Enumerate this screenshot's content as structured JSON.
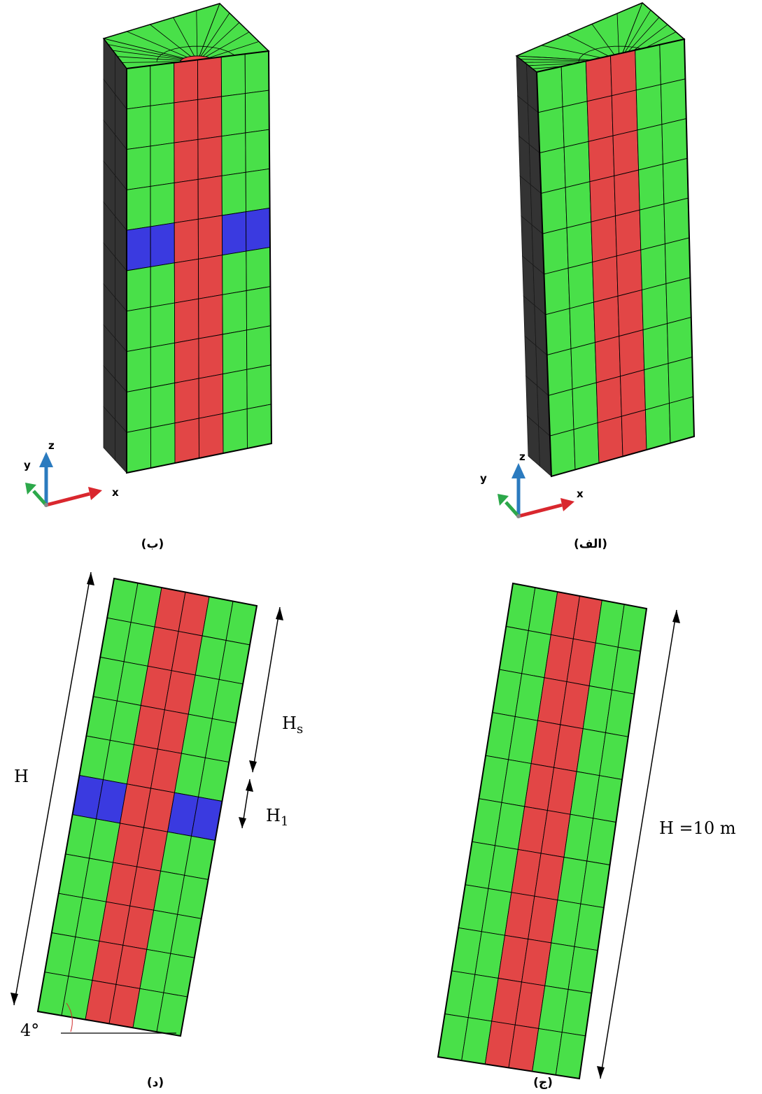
{
  "colors": {
    "soil": "#49e049",
    "column": "#e24646",
    "column_top": "#f04848",
    "band": "#3a3ae0",
    "side": "#333333",
    "line": "#000000",
    "axis_x": "#d9272e",
    "axis_y": "#2ca84a",
    "axis_z": "#2b7bbf"
  },
  "panels": {
    "a": {
      "caption": "(الف)",
      "axes": {
        "x": "x",
        "y": "y",
        "z": "z"
      }
    },
    "b": {
      "caption": "(ب)",
      "axes": {
        "x": "x",
        "y": "y",
        "z": "z"
      }
    },
    "c": {
      "caption": "(ج)",
      "height_label": "H =10 m"
    },
    "d": {
      "caption": "(د)",
      "H_label": "H",
      "Hs_main": "H",
      "Hs_sub": "s",
      "H1_main": "H",
      "H1_sub": "1",
      "angle_label": "4°"
    }
  },
  "icons": [
    "axis-triad-icon",
    "dimension-arrow-icon"
  ]
}
